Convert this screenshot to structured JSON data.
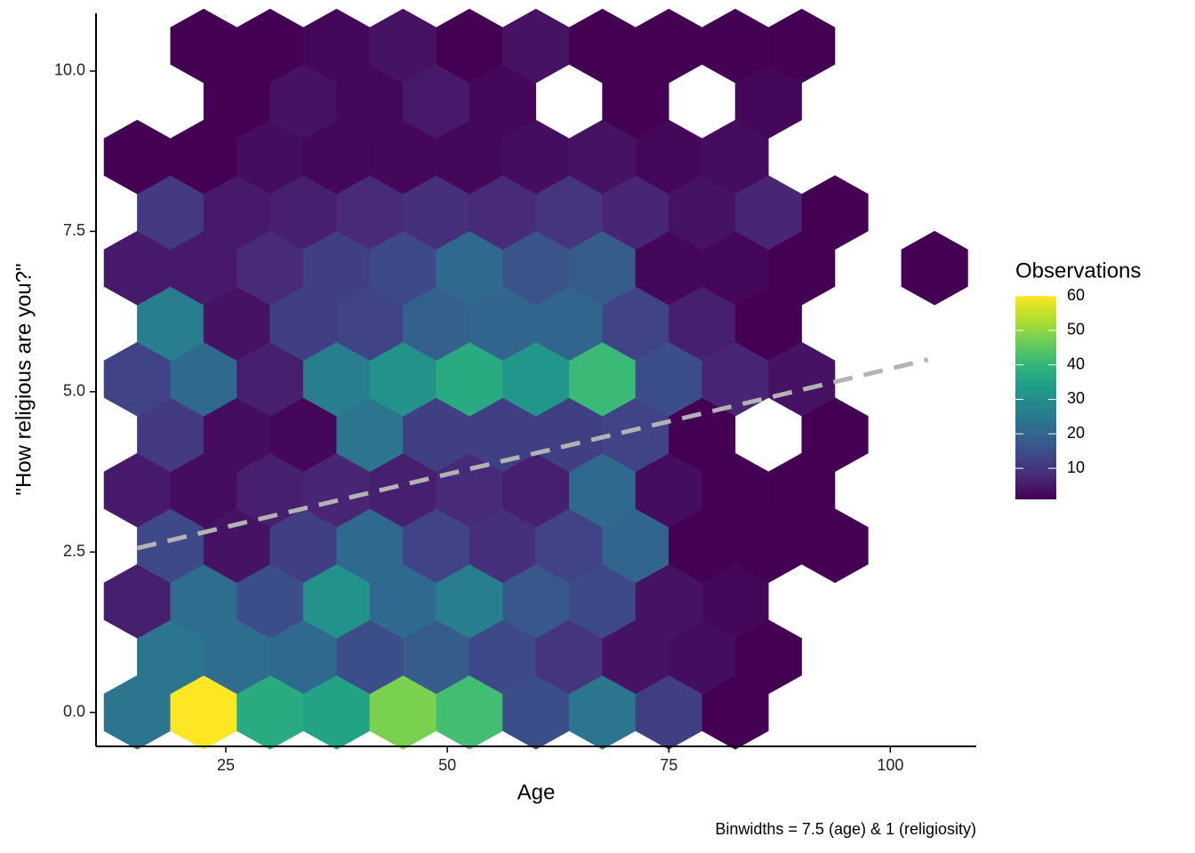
{
  "chart_data": {
    "type": "hexbin",
    "x_label": "Age",
    "y_label": "\"How religious are you?\"",
    "caption": "Binwidths = 7.5 (age) & 1 (religiosity)",
    "legend_title": "Observations",
    "x": [
      15,
      22.5,
      30,
      37.5,
      45,
      52.5,
      60,
      67.5,
      75,
      82.5,
      18.75,
      26.25,
      33.75,
      41.25,
      48.75,
      56.25,
      63.75,
      71.25,
      78.75,
      86.25,
      15,
      22.5,
      30,
      37.5,
      45,
      52.5,
      60,
      67.5,
      75,
      82.5,
      18.75,
      26.25,
      33.75,
      41.25,
      48.75,
      56.25,
      63.75,
      71.25,
      78.75,
      86.25,
      93.75,
      15,
      22.5,
      30,
      37.5,
      45,
      52.5,
      60,
      67.5,
      75,
      82.5,
      90,
      18.75,
      26.25,
      33.75,
      41.25,
      48.75,
      56.25,
      63.75,
      71.25,
      78.75,
      93.75,
      15,
      22.5,
      30,
      37.5,
      45,
      52.5,
      60,
      67.5,
      75,
      82.5,
      90,
      18.75,
      26.25,
      33.75,
      41.25,
      48.75,
      56.25,
      63.75,
      71.25,
      78.75,
      86.25,
      15,
      22.5,
      30,
      37.5,
      45,
      52.5,
      60,
      67.5,
      75,
      82.5,
      90,
      105,
      18.75,
      26.25,
      33.75,
      41.25,
      48.75,
      56.25,
      63.75,
      71.25,
      78.75,
      86.25,
      93.75,
      15,
      22.5,
      30,
      37.5,
      45,
      52.5,
      60,
      67.5,
      75,
      82.5,
      26.25,
      33.75,
      41.25,
      48.75,
      56.25,
      71.25,
      86.25,
      22.5,
      30,
      37.5,
      45,
      52.5,
      60,
      67.5,
      75,
      82.5,
      90
    ],
    "y": [
      0,
      0,
      0,
      0,
      0,
      0,
      0,
      0,
      0,
      0,
      0.866,
      0.866,
      0.866,
      0.866,
      0.866,
      0.866,
      0.866,
      0.866,
      0.866,
      0.866,
      1.732,
      1.732,
      1.732,
      1.732,
      1.732,
      1.732,
      1.732,
      1.732,
      1.732,
      1.732,
      2.598,
      2.598,
      2.598,
      2.598,
      2.598,
      2.598,
      2.598,
      2.598,
      2.598,
      2.598,
      2.598,
      3.464,
      3.464,
      3.464,
      3.464,
      3.464,
      3.464,
      3.464,
      3.464,
      3.464,
      3.464,
      3.464,
      4.33,
      4.33,
      4.33,
      4.33,
      4.33,
      4.33,
      4.33,
      4.33,
      4.33,
      4.33,
      5.196,
      5.196,
      5.196,
      5.196,
      5.196,
      5.196,
      5.196,
      5.196,
      5.196,
      5.196,
      5.196,
      6.062,
      6.062,
      6.062,
      6.062,
      6.062,
      6.062,
      6.062,
      6.062,
      6.062,
      6.062,
      6.928,
      6.928,
      6.928,
      6.928,
      6.928,
      6.928,
      6.928,
      6.928,
      6.928,
      6.928,
      6.928,
      6.928,
      7.794,
      7.794,
      7.794,
      7.794,
      7.794,
      7.794,
      7.794,
      7.794,
      7.794,
      7.794,
      7.794,
      8.66,
      8.66,
      8.66,
      8.66,
      8.66,
      8.66,
      8.66,
      8.66,
      8.66,
      8.66,
      9.526,
      9.526,
      9.526,
      9.526,
      9.526,
      9.526,
      9.526,
      10.392,
      10.392,
      10.392,
      10.392,
      10.392,
      10.392,
      10.392,
      10.392,
      10.392,
      10.392
    ],
    "values": [
      24,
      60,
      37,
      35,
      48,
      42,
      15,
      24,
      12,
      1,
      24,
      22,
      21,
      15,
      18,
      14,
      10,
      4,
      3,
      1,
      6,
      22,
      15,
      31,
      21,
      26,
      17,
      14,
      4,
      2,
      14,
      4,
      12,
      21,
      13,
      9,
      13,
      20,
      1,
      1,
      1,
      5,
      3,
      6,
      7,
      6,
      8,
      6,
      21,
      3,
      1,
      1,
      11,
      3,
      2,
      24,
      12,
      12,
      12,
      13,
      1,
      1,
      13,
      21,
      6,
      26,
      31,
      37,
      32,
      41,
      15,
      7,
      4,
      26,
      4,
      12,
      13,
      19,
      20,
      20,
      13,
      6,
      1,
      5,
      5,
      8,
      12,
      14,
      21,
      16,
      18,
      2,
      2,
      1,
      1,
      11,
      5,
      6,
      8,
      9,
      8,
      10,
      7,
      4,
      7,
      1,
      1,
      1,
      3,
      2,
      2,
      2,
      3,
      4,
      2,
      3,
      1,
      4,
      2,
      5,
      2,
      1,
      2,
      1,
      1,
      2,
      4,
      1,
      4,
      1,
      1,
      1,
      1
    ],
    "binwidth_x": 7.5,
    "binwidth_y": 1,
    "trend": {
      "x": [
        15,
        104.25
      ],
      "y": [
        2.56,
        5.5
      ],
      "color": "#b3b3b3",
      "dashed": true
    },
    "xlim": [
      10.35,
      109.7
    ],
    "ylim": [
      -0.53,
      10.9
    ],
    "xticks": [
      25,
      50,
      75,
      100
    ],
    "yticks": [
      {
        "value": 0,
        "label": "0.0"
      },
      {
        "value": 2.5,
        "label": "2.5"
      },
      {
        "value": 5,
        "label": "5.0"
      },
      {
        "value": 7.5,
        "label": "7.5"
      },
      {
        "value": 10,
        "label": "10.0"
      }
    ],
    "color_lim": [
      1,
      60
    ],
    "color_ticks": [
      10,
      20,
      30,
      40,
      50,
      60
    ],
    "colormap": [
      "#440154",
      "#482878",
      "#3e4a89",
      "#31688e",
      "#26828e",
      "#1f9e89",
      "#35b779",
      "#6ece58",
      "#b5de2b",
      "#fde725"
    ]
  }
}
